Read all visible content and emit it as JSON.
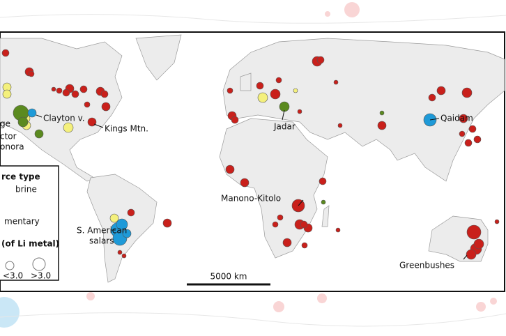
{
  "map": {
    "labels": {
      "clayton": "Clayton v.",
      "kings": "Kings Mtn.",
      "jadar": "Jadar",
      "qaidam": "Qaidam",
      "manono": "Manono-Kitolo",
      "salars_1": "S. American",
      "salars_2": "salars",
      "greenbushes": "Greenbushes",
      "cut_1": "ge",
      "cut_2": "ctor",
      "cut_3": "onora"
    },
    "legend": {
      "title": "rce type",
      "brine": "brine",
      "sedimentary": "mentary",
      "size_title": "(of Li metal)",
      "small": "<3.0",
      "large": ">3.0"
    },
    "scale_bar": "5000 km"
  }
}
